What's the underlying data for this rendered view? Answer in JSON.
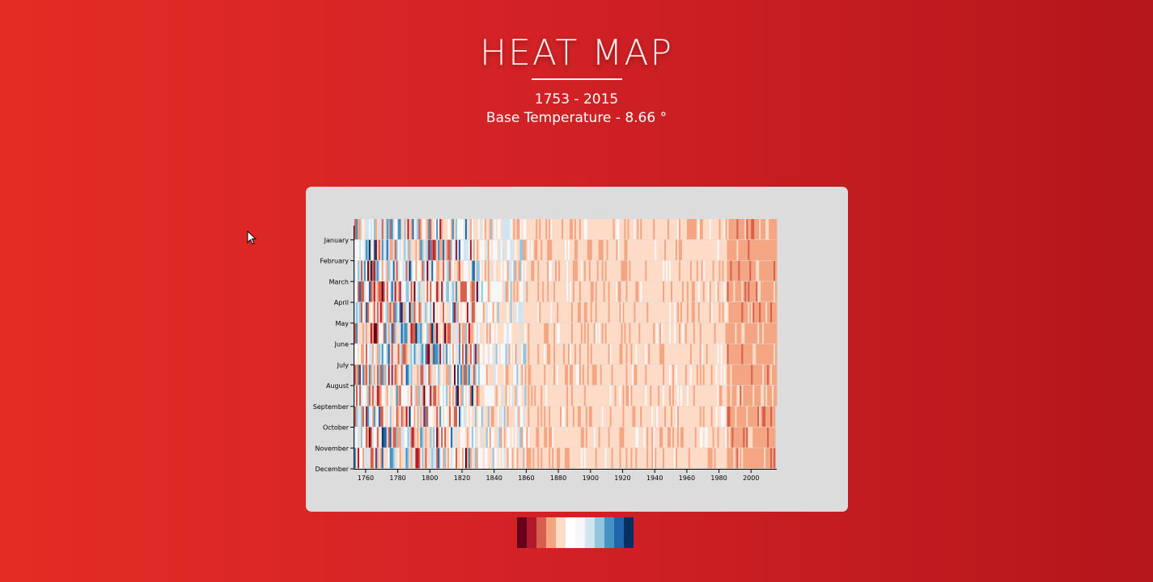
{
  "header": {
    "title": "HEAT MAP",
    "years": "1753 - 2015",
    "base": "Base Temperature - 8.66 °"
  },
  "chart_data": {
    "type": "heatmap",
    "x_range": [
      1753,
      2015
    ],
    "xticks": [
      "1760",
      "1780",
      "1800",
      "1820",
      "1840",
      "1860",
      "1880",
      "1900",
      "1920",
      "1940",
      "1960",
      "1980",
      "2000"
    ],
    "yticks": [
      "January",
      "February",
      "March",
      "April",
      "May",
      "June",
      "July",
      "August",
      "September",
      "October",
      "November",
      "December"
    ],
    "base_temperature": 8.66,
    "color_scale": [
      "#67001f",
      "#b2182b",
      "#d6604d",
      "#f4a582",
      "#fddbc7",
      "#f7f7f7",
      "#d1e5f0",
      "#92c5de",
      "#4393c3",
      "#2166ac",
      "#053061"
    ]
  },
  "legend": {
    "colors": [
      "#67001f",
      "#b2182b",
      "#d6604d",
      "#f4a582",
      "#fddbc7",
      "#ffffff",
      "#f7f7f7",
      "#d1e5f0",
      "#92c5de",
      "#4393c3",
      "#2166ac",
      "#053061"
    ]
  }
}
